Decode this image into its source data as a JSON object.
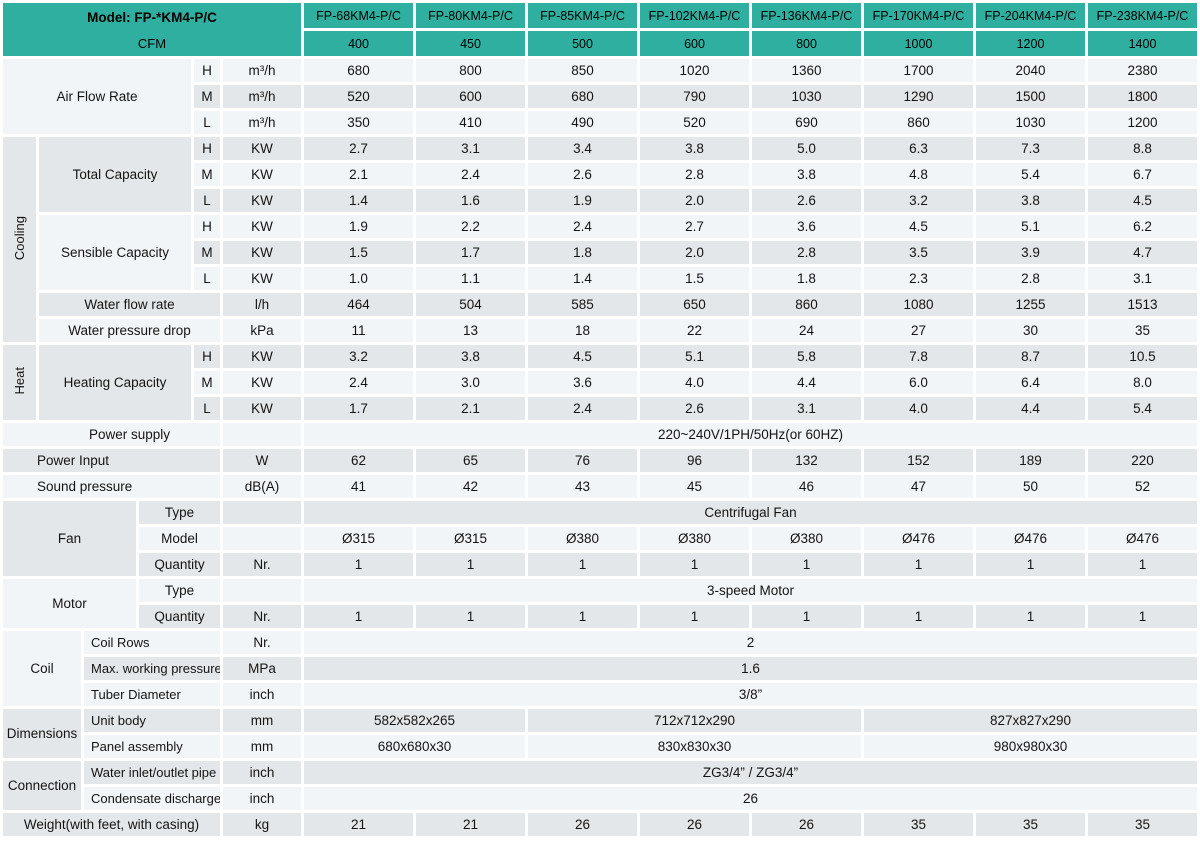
{
  "colors": {
    "teal": "#2fafa0",
    "row_light": "#f1f5f7",
    "row_dark": "#e4e7e9",
    "label_bg": "#e6e8ea"
  },
  "header": {
    "model_label": "Model: FP-*KM4-P/C",
    "cfm_label": "CFM",
    "models": [
      "FP-68KM4-P/C",
      "FP-80KM4-P/C",
      "FP-85KM4-P/C",
      "FP-102KM4-P/C",
      "FP-136KM4-P/C",
      "FP-170KM4-P/C",
      "FP-204KM4-P/C",
      "FP-238KM4-P/C"
    ],
    "cfm_values": [
      "400",
      "450",
      "500",
      "600",
      "800",
      "1000",
      "1200",
      "1400"
    ]
  },
  "air_flow": {
    "label": "Air Flow Rate",
    "h": {
      "speed": "H",
      "unit": "m³/h",
      "values": [
        "680",
        "800",
        "850",
        "1020",
        "1360",
        "1700",
        "2040",
        "2380"
      ]
    },
    "m": {
      "speed": "M",
      "unit": "m³/h",
      "values": [
        "520",
        "600",
        "680",
        "790",
        "1030",
        "1290",
        "1500",
        "1800"
      ]
    },
    "l": {
      "speed": "L",
      "unit": "m³/h",
      "values": [
        "350",
        "410",
        "490",
        "520",
        "690",
        "860",
        "1030",
        "1200"
      ]
    }
  },
  "cooling": {
    "section": "Cooling",
    "total_capacity": {
      "label": "Total Capacity",
      "h": {
        "speed": "H",
        "unit": "KW",
        "values": [
          "2.7",
          "3.1",
          "3.4",
          "3.8",
          "5.0",
          "6.3",
          "7.3",
          "8.8"
        ]
      },
      "m": {
        "speed": "M",
        "unit": "KW",
        "values": [
          "2.1",
          "2.4",
          "2.6",
          "2.8",
          "3.8",
          "4.8",
          "5.4",
          "6.7"
        ]
      },
      "l": {
        "speed": "L",
        "unit": "KW",
        "values": [
          "1.4",
          "1.6",
          "1.9",
          "2.0",
          "2.6",
          "3.2",
          "3.8",
          "4.5"
        ]
      }
    },
    "sensible_capacity": {
      "label": "Sensible Capacity",
      "h": {
        "speed": "H",
        "unit": "KW",
        "values": [
          "1.9",
          "2.2",
          "2.4",
          "2.7",
          "3.6",
          "4.5",
          "5.1",
          "6.2"
        ]
      },
      "m": {
        "speed": "M",
        "unit": "KW",
        "values": [
          "1.5",
          "1.7",
          "1.8",
          "2.0",
          "2.8",
          "3.5",
          "3.9",
          "4.7"
        ]
      },
      "l": {
        "speed": "L",
        "unit": "KW",
        "values": [
          "1.0",
          "1.1",
          "1.4",
          "1.5",
          "1.8",
          "2.3",
          "2.8",
          "3.1"
        ]
      }
    },
    "water_flow_rate": {
      "label": "Water flow rate",
      "unit": "l/h",
      "values": [
        "464",
        "504",
        "585",
        "650",
        "860",
        "1080",
        "1255",
        "1513"
      ]
    },
    "water_pressure_drop": {
      "label": "Water pressure drop",
      "unit": "kPa",
      "values": [
        "11",
        "13",
        "18",
        "22",
        "24",
        "27",
        "30",
        "35"
      ]
    }
  },
  "heat": {
    "section": "Heat",
    "heating_capacity": {
      "label": "Heating Capacity",
      "h": {
        "speed": "H",
        "unit": "KW",
        "values": [
          "3.2",
          "3.8",
          "4.5",
          "5.1",
          "5.8",
          "7.8",
          "8.7",
          "10.5"
        ]
      },
      "m": {
        "speed": "M",
        "unit": "KW",
        "values": [
          "2.4",
          "3.0",
          "3.6",
          "4.0",
          "4.4",
          "6.0",
          "6.4",
          "8.0"
        ]
      },
      "l": {
        "speed": "L",
        "unit": "KW",
        "values": [
          "1.7",
          "2.1",
          "2.4",
          "2.6",
          "3.1",
          "4.0",
          "4.4",
          "5.4"
        ]
      }
    }
  },
  "power_supply": {
    "label": "Power supply",
    "value": "220~240V/1PH/50Hz(or 60HZ)"
  },
  "power_input": {
    "label": "Power Input",
    "unit": "W",
    "values": [
      "62",
      "65",
      "76",
      "96",
      "132",
      "152",
      "189",
      "220"
    ]
  },
  "sound_pressure": {
    "label": "Sound pressure",
    "unit": "dB(A)",
    "values": [
      "41",
      "42",
      "43",
      "45",
      "46",
      "47",
      "50",
      "52"
    ]
  },
  "fan": {
    "label": "Fan",
    "type": {
      "label": "Type",
      "value": "Centrifugal Fan"
    },
    "model": {
      "label": "Model",
      "values": [
        "Ø315",
        "Ø315",
        "Ø380",
        "Ø380",
        "Ø380",
        "Ø476",
        "Ø476",
        "Ø476"
      ]
    },
    "quantity": {
      "label": "Quantity",
      "unit": "Nr.",
      "values": [
        "1",
        "1",
        "1",
        "1",
        "1",
        "1",
        "1",
        "1"
      ]
    }
  },
  "motor": {
    "label": "Motor",
    "type": {
      "label": "Type",
      "value": "3-speed Motor"
    },
    "quantity": {
      "label": "Quantity",
      "unit": "Nr.",
      "values": [
        "1",
        "1",
        "1",
        "1",
        "1",
        "1",
        "1",
        "1"
      ]
    }
  },
  "coil": {
    "label": "Coil",
    "rows": {
      "label": "Coil Rows",
      "unit": "Nr.",
      "value": "2"
    },
    "max_working_pressure": {
      "label": "Max. working pressure",
      "unit": "MPa",
      "value": "1.6"
    },
    "tuber_diameter": {
      "label": "Tuber Diameter",
      "unit": "inch",
      "value": "3/8”"
    }
  },
  "dimensions": {
    "label": "Dimensions",
    "unit_body": {
      "label": "Unit body",
      "unit": "mm",
      "values": [
        "582x582x265",
        "712x712x290",
        "827x827x290"
      ]
    },
    "panel_assembly": {
      "label": "Panel assembly",
      "unit": "mm",
      "values": [
        "680x680x30",
        "830x830x30",
        "980x980x30"
      ]
    }
  },
  "connection": {
    "label": "Connection",
    "water_pipe": {
      "label": "Water inlet/outlet pipe",
      "unit": "inch",
      "value": "ZG3/4” / ZG3/4”"
    },
    "condensate": {
      "label": "Condensate discharge",
      "unit": "inch",
      "value": "26"
    }
  },
  "weight": {
    "label": "Weight(with feet, with casing)",
    "unit": "kg",
    "values": [
      "21",
      "21",
      "26",
      "26",
      "26",
      "35",
      "35",
      "35"
    ]
  }
}
